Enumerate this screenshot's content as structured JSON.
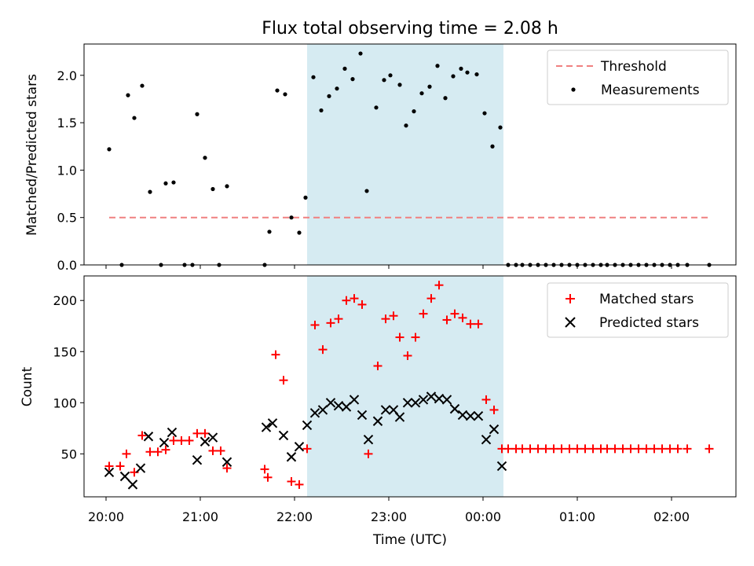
{
  "figure": {
    "title": "Flux total observing time = 2.08 h"
  },
  "colors": {
    "threshold": "#f08080",
    "measurements": "#000000",
    "matched": "#ff0000",
    "predicted": "#000000",
    "span": "#add8e6"
  },
  "chart_data": [
    {
      "type": "scatter",
      "panel": "top",
      "xlabel": "",
      "ylabel": "Matched/Predicted stars",
      "x_unit": "hours since 20:00 UTC",
      "xlim": [
        "19:46",
        "02:41"
      ],
      "ylim": [
        0,
        2.33
      ],
      "yticks": [
        "0.0",
        "0.5",
        "1.0",
        "1.5",
        "2.0"
      ],
      "highlight_span": {
        "from": "22:08",
        "to": "00:13"
      },
      "legend": {
        "position": "upper right",
        "entries": [
          "Threshold",
          "Measurements"
        ]
      },
      "threshold": {
        "name": "Threshold",
        "style": "dashed",
        "x": [
          "20:02",
          "02:24"
        ],
        "y": 0.5
      },
      "series": [
        {
          "name": "Measurements",
          "points": [
            [
              "20:02",
              1.22
            ],
            [
              "20:10",
              0.0
            ],
            [
              "20:14",
              1.79
            ],
            [
              "20:18",
              1.55
            ],
            [
              "20:23",
              1.89
            ],
            [
              "20:28",
              0.77
            ],
            [
              "20:35",
              0.0
            ],
            [
              "20:38",
              0.86
            ],
            [
              "20:43",
              0.87
            ],
            [
              "20:50",
              0.0
            ],
            [
              "20:55",
              0.0
            ],
            [
              "20:58",
              1.59
            ],
            [
              "21:03",
              1.13
            ],
            [
              "21:08",
              0.8
            ],
            [
              "21:12",
              0.0
            ],
            [
              "21:17",
              0.83
            ],
            [
              "21:41",
              0.0
            ],
            [
              "21:44",
              0.35
            ],
            [
              "21:49",
              1.84
            ],
            [
              "21:54",
              1.8
            ],
            [
              "21:58",
              0.5
            ],
            [
              "22:03",
              0.34
            ],
            [
              "22:07",
              0.71
            ],
            [
              "22:12",
              1.98
            ],
            [
              "22:17",
              1.63
            ],
            [
              "22:22",
              1.78
            ],
            [
              "22:27",
              1.86
            ],
            [
              "22:32",
              2.07
            ],
            [
              "22:37",
              1.96
            ],
            [
              "22:42",
              2.23
            ],
            [
              "22:46",
              0.78
            ],
            [
              "22:52",
              1.66
            ],
            [
              "22:57",
              1.95
            ],
            [
              "23:01",
              2.0
            ],
            [
              "23:07",
              1.9
            ],
            [
              "23:11",
              1.47
            ],
            [
              "23:16",
              1.62
            ],
            [
              "23:21",
              1.81
            ],
            [
              "23:26",
              1.88
            ],
            [
              "23:31",
              2.1
            ],
            [
              "23:36",
              1.76
            ],
            [
              "23:41",
              1.99
            ],
            [
              "23:46",
              2.07
            ],
            [
              "23:50",
              2.03
            ],
            [
              "23:56",
              2.01
            ],
            [
              "00:01",
              1.6
            ],
            [
              "00:06",
              1.25
            ],
            [
              "00:11",
              1.45
            ],
            [
              "00:16",
              0.0
            ],
            [
              "00:21",
              0.0
            ],
            [
              "00:25",
              0.0
            ],
            [
              "00:30",
              0.0
            ],
            [
              "00:35",
              0.0
            ],
            [
              "00:40",
              0.0
            ],
            [
              "00:45",
              0.0
            ],
            [
              "00:50",
              0.0
            ],
            [
              "00:55",
              0.0
            ],
            [
              "01:00",
              0.0
            ],
            [
              "01:05",
              0.0
            ],
            [
              "01:10",
              0.0
            ],
            [
              "01:15",
              0.0
            ],
            [
              "01:19",
              0.0
            ],
            [
              "01:24",
              0.0
            ],
            [
              "01:29",
              0.0
            ],
            [
              "01:34",
              0.0
            ],
            [
              "01:39",
              0.0
            ],
            [
              "01:44",
              0.0
            ],
            [
              "01:49",
              0.0
            ],
            [
              "01:54",
              0.0
            ],
            [
              "01:59",
              0.0
            ],
            [
              "02:04",
              0.0
            ],
            [
              "02:10",
              0.0
            ],
            [
              "02:24",
              0.0
            ]
          ]
        }
      ]
    },
    {
      "type": "scatter",
      "panel": "bottom",
      "xlabel": "Time (UTC)",
      "ylabel": "Count",
      "xlim": [
        "19:46",
        "02:41"
      ],
      "ylim": [
        8,
        224
      ],
      "yticks": [
        "50",
        "100",
        "150",
        "200"
      ],
      "xticks": [
        "20:00",
        "21:00",
        "22:00",
        "23:00",
        "00:00",
        "01:00",
        "02:00"
      ],
      "highlight_span": {
        "from": "22:08",
        "to": "00:13"
      },
      "legend": {
        "position": "upper right",
        "entries": [
          "Matched stars",
          "Predicted stars"
        ]
      },
      "series": [
        {
          "name": "Matched stars",
          "marker": "+",
          "points": [
            [
              "20:02",
              38
            ],
            [
              "20:09",
              38
            ],
            [
              "20:13",
              50
            ],
            [
              "20:18",
              32
            ],
            [
              "20:23",
              68
            ],
            [
              "20:28",
              52
            ],
            [
              "20:33",
              52
            ],
            [
              "20:38",
              54
            ],
            [
              "20:43",
              63
            ],
            [
              "20:48",
              63
            ],
            [
              "20:53",
              63
            ],
            [
              "20:58",
              70
            ],
            [
              "21:03",
              70
            ],
            [
              "21:08",
              53
            ],
            [
              "21:13",
              53
            ],
            [
              "21:17",
              36
            ],
            [
              "21:41",
              35
            ],
            [
              "21:43",
              27
            ],
            [
              "21:48",
              147
            ],
            [
              "21:53",
              122
            ],
            [
              "21:58",
              23
            ],
            [
              "22:03",
              20
            ],
            [
              "22:08",
              55
            ],
            [
              "22:13",
              176
            ],
            [
              "22:18",
              152
            ],
            [
              "22:23",
              178
            ],
            [
              "22:28",
              182
            ],
            [
              "22:33",
              200
            ],
            [
              "22:38",
              202
            ],
            [
              "22:43",
              196
            ],
            [
              "22:47",
              50
            ],
            [
              "22:53",
              136
            ],
            [
              "22:58",
              182
            ],
            [
              "23:03",
              185
            ],
            [
              "23:07",
              164
            ],
            [
              "23:12",
              146
            ],
            [
              "23:17",
              164
            ],
            [
              "23:22",
              187
            ],
            [
              "23:27",
              202
            ],
            [
              "23:32",
              215
            ],
            [
              "23:37",
              181
            ],
            [
              "23:42",
              187
            ],
            [
              "23:47",
              183
            ],
            [
              "23:52",
              177
            ],
            [
              "23:57",
              177
            ],
            [
              "00:02",
              103
            ],
            [
              "00:07",
              93
            ],
            [
              "00:12",
              55
            ],
            [
              "00:16",
              55
            ],
            [
              "00:21",
              55
            ],
            [
              "00:25",
              55
            ],
            [
              "00:30",
              55
            ],
            [
              "00:35",
              55
            ],
            [
              "00:40",
              55
            ],
            [
              "00:45",
              55
            ],
            [
              "00:50",
              55
            ],
            [
              "00:55",
              55
            ],
            [
              "01:00",
              55
            ],
            [
              "01:05",
              55
            ],
            [
              "01:10",
              55
            ],
            [
              "01:15",
              55
            ],
            [
              "01:19",
              55
            ],
            [
              "01:24",
              55
            ],
            [
              "01:29",
              55
            ],
            [
              "01:34",
              55
            ],
            [
              "01:39",
              55
            ],
            [
              "01:44",
              55
            ],
            [
              "01:49",
              55
            ],
            [
              "01:54",
              55
            ],
            [
              "01:59",
              55
            ],
            [
              "02:04",
              55
            ],
            [
              "02:10",
              55
            ],
            [
              "02:24",
              55
            ]
          ]
        },
        {
          "name": "Predicted stars",
          "marker": "x",
          "points": [
            [
              "20:02",
              32
            ],
            [
              "20:12",
              28
            ],
            [
              "20:17",
              20
            ],
            [
              "20:22",
              36
            ],
            [
              "20:27",
              67
            ],
            [
              "20:37",
              61
            ],
            [
              "20:42",
              71
            ],
            [
              "20:58",
              44
            ],
            [
              "21:03",
              62
            ],
            [
              "21:08",
              66
            ],
            [
              "21:17",
              42
            ],
            [
              "21:42",
              76
            ],
            [
              "21:46",
              80
            ],
            [
              "21:53",
              68
            ],
            [
              "21:58",
              47
            ],
            [
              "22:03",
              57
            ],
            [
              "22:08",
              78
            ],
            [
              "22:13",
              90
            ],
            [
              "22:18",
              93
            ],
            [
              "22:23",
              100
            ],
            [
              "22:28",
              97
            ],
            [
              "22:33",
              96
            ],
            [
              "22:38",
              103
            ],
            [
              "22:43",
              88
            ],
            [
              "22:47",
              64
            ],
            [
              "22:53",
              82
            ],
            [
              "22:58",
              93
            ],
            [
              "23:03",
              93
            ],
            [
              "23:07",
              86
            ],
            [
              "23:12",
              100
            ],
            [
              "23:17",
              100
            ],
            [
              "23:22",
              103
            ],
            [
              "23:27",
              106
            ],
            [
              "23:32",
              104
            ],
            [
              "23:37",
              103
            ],
            [
              "23:42",
              94
            ],
            [
              "23:47",
              88
            ],
            [
              "23:52",
              87
            ],
            [
              "23:57",
              87
            ],
            [
              "00:02",
              64
            ],
            [
              "00:07",
              74
            ],
            [
              "00:12",
              38
            ]
          ]
        }
      ]
    }
  ]
}
